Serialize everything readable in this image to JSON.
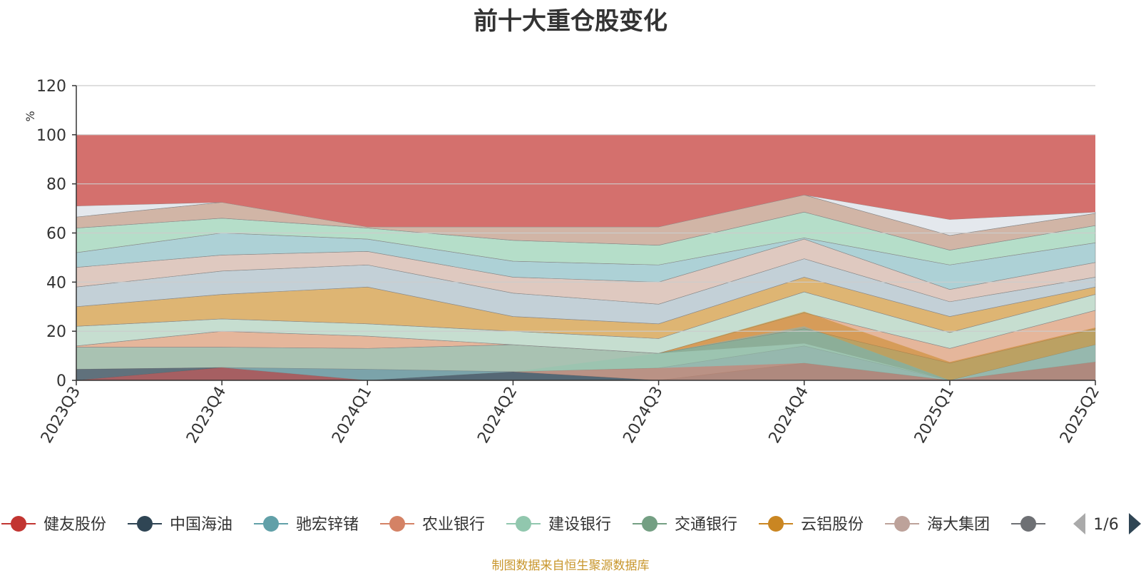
{
  "chart_data": {
    "type": "area",
    "title": "前十大重仓股变化",
    "ylabel": "%",
    "xlabel": "",
    "ylim": [
      0,
      120
    ],
    "y_ticks": [
      0,
      20,
      40,
      60,
      80,
      100,
      120
    ],
    "stacked": true,
    "grid": true,
    "legend_position": "bottom",
    "x": [
      "2023Q3",
      "2023Q4",
      "2024Q1",
      "2024Q2",
      "2024Q3",
      "2024Q4",
      "2025Q1",
      "2025Q2"
    ],
    "series": [
      {
        "name": "健友股份",
        "color": "#c23531",
        "values": [
          0,
          5.2,
          0,
          0,
          0,
          0,
          0,
          0
        ]
      },
      {
        "name": "中国海油",
        "color": "#2f4554",
        "values": [
          4.5,
          0,
          0,
          3.5,
          0,
          0,
          0,
          0
        ]
      },
      {
        "name": "驰宏锌锗",
        "color": "#61a0a8",
        "values": [
          0,
          0,
          4.5,
          0,
          0,
          0,
          0,
          0
        ]
      },
      {
        "name": "农业银行",
        "color": "#d48265",
        "values": [
          0,
          0,
          0,
          0,
          5,
          7,
          0,
          7.5
        ]
      },
      {
        "name": "建设银行",
        "color": "#91c7ae",
        "values": [
          0,
          0,
          0,
          0,
          6,
          8,
          0,
          7
        ]
      },
      {
        "name": "交通银行",
        "color": "#749f83",
        "values": [
          0,
          0,
          0,
          0,
          0,
          7,
          0,
          0
        ]
      },
      {
        "name": "云铝股份",
        "color": "#ca8622",
        "values": [
          0,
          0,
          0,
          0,
          0,
          6,
          7.5,
          7
        ]
      },
      {
        "name": "海大集团",
        "color": "#bda29a",
        "values": [
          0,
          0,
          0,
          0,
          0,
          0,
          0,
          0
        ]
      }
    ],
    "legend_more_icon": "gray-circle",
    "page_indicator": "1/6"
  },
  "source_note": "制图数据来自恒生聚源数据库",
  "colors": {
    "top_band": "#d4706d",
    "axis": "#333333",
    "grid": "#cccccc",
    "ylabel": "#e03030",
    "source": "#c8962c",
    "page_arrow_inactive": "#aaaaaa",
    "page_arrow_active": "#2f4554"
  }
}
